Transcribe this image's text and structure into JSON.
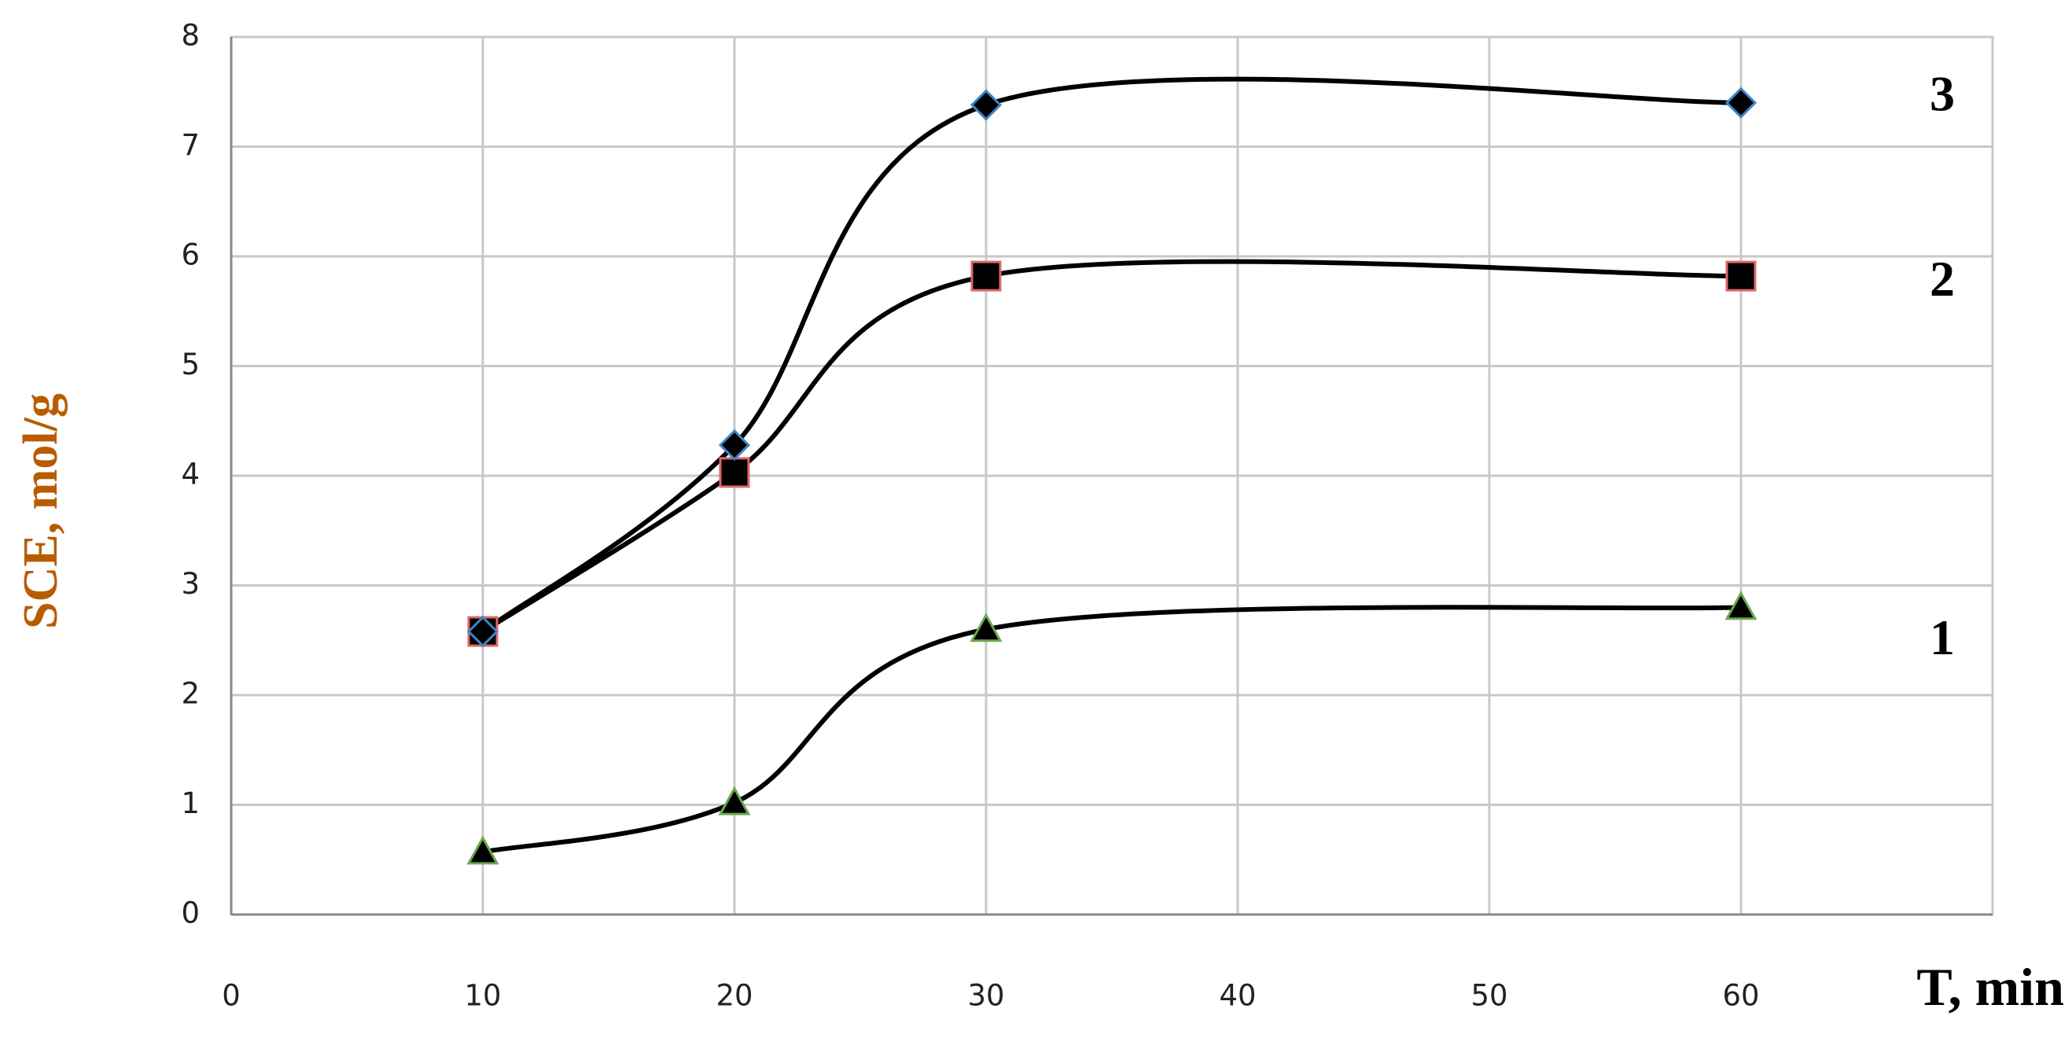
{
  "chart_data": {
    "type": "line",
    "x_label": "T, min",
    "y_label": "SCE, mol/g",
    "x": [
      10,
      20,
      30,
      60
    ],
    "xlim": [
      0,
      70
    ],
    "xticks": [
      0,
      10,
      20,
      30,
      40,
      50,
      60
    ],
    "ylim": [
      0,
      8
    ],
    "yticks": [
      0,
      1,
      2,
      3,
      4,
      5,
      6,
      7,
      8
    ],
    "grid": true,
    "smooth": true,
    "series": [
      {
        "name": "1",
        "color": "#000000",
        "marker": "triangle",
        "edgecolor": "#6aa84f",
        "values": [
          0.57,
          1.02,
          2.6,
          2.8
        ]
      },
      {
        "name": "2",
        "color": "#000000",
        "marker": "square",
        "edgecolor": "#e06666",
        "values": [
          2.58,
          4.03,
          5.82,
          5.82
        ]
      },
      {
        "name": "3",
        "color": "#000000",
        "marker": "diamond",
        "edgecolor": "#3d85c6",
        "values": [
          2.58,
          4.28,
          7.38,
          7.4
        ]
      }
    ]
  }
}
